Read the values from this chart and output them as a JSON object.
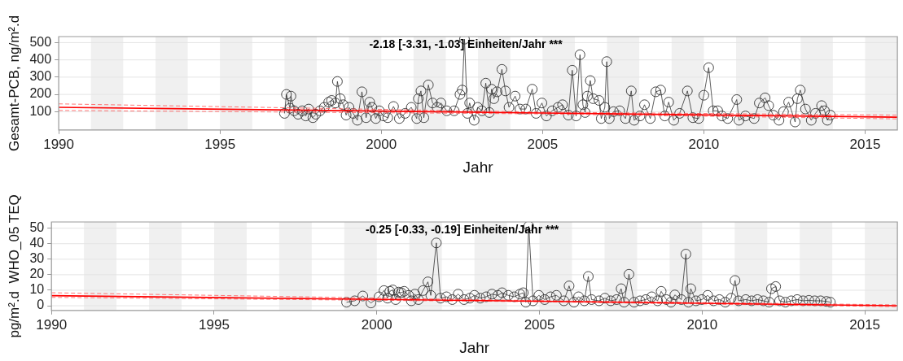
{
  "chart_data": [
    {
      "type": "line",
      "xlabel": "Jahr",
      "ylabel": "Gesamt-PCB, ng/m².d",
      "annotations": [
        "-2.18 [-3.31, -1.03] Einheiten/Jahr ***"
      ],
      "xlim": [
        1990,
        2016
      ],
      "xticks": [
        1990,
        1995,
        2000,
        2005,
        2010,
        2015
      ],
      "ylim": [
        -6,
        535
      ],
      "yticks": [
        100,
        200,
        300,
        400,
        500
      ],
      "grid": "y",
      "legend": false,
      "bands": [
        {
          "axis": "x",
          "from": 1991,
          "to": 1992,
          "color": "#f0f0f0"
        },
        {
          "axis": "x",
          "from": 1993,
          "to": 1994,
          "color": "#f0f0f0"
        },
        {
          "axis": "x",
          "from": 1995,
          "to": 1996,
          "color": "#f0f0f0"
        },
        {
          "axis": "x",
          "from": 1997,
          "to": 1998,
          "color": "#f0f0f0"
        },
        {
          "axis": "x",
          "from": 1999,
          "to": 2000,
          "color": "#f0f0f0"
        },
        {
          "axis": "x",
          "from": 2001,
          "to": 2002,
          "color": "#f0f0f0"
        },
        {
          "axis": "x",
          "from": 2003,
          "to": 2004,
          "color": "#f0f0f0"
        },
        {
          "axis": "x",
          "from": 2005,
          "to": 2006,
          "color": "#f0f0f0"
        },
        {
          "axis": "x",
          "from": 2007,
          "to": 2008,
          "color": "#f0f0f0"
        },
        {
          "axis": "x",
          "from": 2009,
          "to": 2010,
          "color": "#f0f0f0"
        },
        {
          "axis": "x",
          "from": 2011,
          "to": 2012,
          "color": "#f0f0f0"
        },
        {
          "axis": "x",
          "from": 2013,
          "to": 2014,
          "color": "#f0f0f0"
        },
        {
          "axis": "x",
          "from": 2015,
          "to": 2016,
          "color": "#f0f0f0"
        }
      ],
      "series": [
        {
          "color": "#333333",
          "marker": "circle",
          "x": [
            1997.0,
            1997.06,
            1997.17,
            1997.2,
            1997.3,
            1997.42,
            1997.55,
            1997.66,
            1997.75,
            1997.88,
            1997.97,
            1998.1,
            1998.23,
            1998.37,
            1998.46,
            1998.58,
            1998.64,
            1998.73,
            1998.82,
            1998.91,
            1999.0,
            1999.13,
            1999.26,
            1999.4,
            1999.53,
            1999.64,
            1999.71,
            1999.83,
            1999.94,
            2000.07,
            2000.2,
            2000.38,
            2000.56,
            2000.74,
            2000.93,
            2001.1,
            2001.15,
            2001.23,
            2001.32,
            2001.46,
            2001.59,
            2001.73,
            2001.85,
            2002.03,
            2002.26,
            2002.44,
            2002.51,
            2002.58,
            2002.67,
            2002.74,
            2002.88,
            2002.99,
            2003.12,
            2003.24,
            2003.35,
            2003.42,
            2003.49,
            2003.59,
            2003.74,
            2003.85,
            2003.96,
            2004.15,
            2004.3,
            2004.48,
            2004.68,
            2004.8,
            2004.98,
            2005.12,
            2005.3,
            2005.48,
            2005.62,
            2005.8,
            2005.92,
            2006.04,
            2006.16,
            2006.25,
            2006.32,
            2006.39,
            2006.48,
            2006.57,
            2006.75,
            2006.82,
            2006.93,
            2006.99,
            2007.07,
            2007.2,
            2007.39,
            2007.57,
            2007.75,
            2007.84,
            2008.02,
            2008.16,
            2008.34,
            2008.51,
            2008.66,
            2008.79,
            2008.91,
            2009.07,
            2009.25,
            2009.49,
            2009.66,
            2009.84,
            2010.0,
            2010.15,
            2010.29,
            2010.43,
            2010.56,
            2010.74,
            2011.02,
            2011.09,
            2011.29,
            2011.56,
            2011.72,
            2011.9,
            2012.01,
            2012.15,
            2012.33,
            2012.47,
            2012.63,
            2012.83,
            2012.9,
            2012.99,
            2013.15,
            2013.33,
            2013.46,
            2013.65,
            2013.74,
            2013.83,
            2013.92
          ],
          "values": [
            90,
            200,
            120,
            190,
            105,
            85,
            105,
            75,
            115,
            65,
            85,
            105,
            125,
            155,
            165,
            150,
            275,
            175,
            140,
            80,
            125,
            90,
            50,
            215,
            65,
            155,
            125,
            60,
            105,
            75,
            65,
            130,
            60,
            90,
            125,
            60,
            175,
            220,
            65,
            255,
            150,
            125,
            150,
            105,
            105,
            200,
            225,
            520,
            90,
            150,
            50,
            125,
            105,
            265,
            95,
            230,
            175,
            215,
            345,
            220,
            125,
            190,
            115,
            115,
            230,
            90,
            150,
            75,
            105,
            125,
            140,
            80,
            340,
            75,
            430,
            140,
            95,
            190,
            280,
            175,
            165,
            60,
            125,
            390,
            60,
            100,
            105,
            60,
            220,
            50,
            75,
            140,
            60,
            215,
            225,
            75,
            155,
            50,
            90,
            220,
            65,
            60,
            195,
            355,
            105,
            105,
            75,
            60,
            170,
            50,
            75,
            60,
            150,
            180,
            135,
            80,
            50,
            100,
            155,
            40,
            175,
            225,
            115,
            50,
            90,
            135,
            105,
            50,
            80
          ]
        },
        {
          "color": "#ff0000",
          "marker": "none",
          "x": [
            1990,
            2005,
            2016
          ],
          "values": [
            125,
            92,
            68
          ]
        },
        {
          "color": "#ff6666",
          "marker": "none",
          "line_style": "dashed",
          "x": [
            1990,
            2005,
            2016
          ],
          "values": [
            107,
            87,
            58
          ]
        },
        {
          "color": "#ff6666",
          "marker": "none",
          "line_style": "dashed",
          "x": [
            1990,
            2005,
            2016
          ],
          "values": [
            145,
            97,
            80
          ]
        }
      ]
    },
    {
      "type": "line",
      "xlabel": "Jahr",
      "ylabel": "pg/m².d  WHO_05 TEQ",
      "annotations": [
        "-0.25 [-0.33, -0.19] Einheiten/Jahr ***"
      ],
      "xlim": [
        1990,
        2016
      ],
      "xticks": [
        1990,
        1995,
        2000,
        2005,
        2010,
        2015
      ],
      "ylim": [
        -3,
        54
      ],
      "yticks": [
        0,
        10,
        20,
        30,
        40,
        50
      ],
      "grid": "y",
      "legend": false,
      "bands": [
        {
          "axis": "x",
          "from": 1991,
          "to": 1992,
          "color": "#f0f0f0"
        },
        {
          "axis": "x",
          "from": 1993,
          "to": 1994,
          "color": "#f0f0f0"
        },
        {
          "axis": "x",
          "from": 1995,
          "to": 1996,
          "color": "#f0f0f0"
        },
        {
          "axis": "x",
          "from": 1997,
          "to": 1998,
          "color": "#f0f0f0"
        },
        {
          "axis": "x",
          "from": 1999,
          "to": 2000,
          "color": "#f0f0f0"
        },
        {
          "axis": "x",
          "from": 2001,
          "to": 2002,
          "color": "#f0f0f0"
        },
        {
          "axis": "x",
          "from": 2003,
          "to": 2004,
          "color": "#f0f0f0"
        },
        {
          "axis": "x",
          "from": 2005,
          "to": 2006,
          "color": "#f0f0f0"
        },
        {
          "axis": "x",
          "from": 2007,
          "to": 2008,
          "color": "#f0f0f0"
        },
        {
          "axis": "x",
          "from": 2009,
          "to": 2010,
          "color": "#f0f0f0"
        },
        {
          "axis": "x",
          "from": 2011,
          "to": 2012,
          "color": "#f0f0f0"
        },
        {
          "axis": "x",
          "from": 2013,
          "to": 2014,
          "color": "#f0f0f0"
        },
        {
          "axis": "x",
          "from": 2015,
          "to": 2016,
          "color": "#f0f0f0"
        }
      ],
      "series": [
        {
          "color": "#333333",
          "marker": "circle",
          "x": [
            1999.07,
            1999.32,
            1999.57,
            1999.82,
            2000.07,
            2000.22,
            2000.33,
            2000.4,
            2000.49,
            2000.58,
            2000.67,
            2000.75,
            2000.84,
            2000.98,
            2001.06,
            2001.17,
            2001.28,
            2001.42,
            2001.57,
            2001.66,
            2001.83,
            2001.96,
            2002.14,
            2002.32,
            2002.5,
            2002.68,
            2002.86,
            2003.0,
            2003.18,
            2003.36,
            2003.54,
            2003.72,
            2003.85,
            2004.04,
            2004.22,
            2004.4,
            2004.5,
            2004.58,
            2004.67,
            2004.8,
            2004.98,
            2005.16,
            2005.34,
            2005.52,
            2005.75,
            2005.91,
            2006.06,
            2006.2,
            2006.38,
            2006.5,
            2006.6,
            2006.83,
            2007.01,
            2007.19,
            2007.37,
            2007.51,
            2007.6,
            2007.75,
            2007.91,
            2008.09,
            2008.27,
            2008.45,
            2008.63,
            2008.74,
            2008.9,
            2009.04,
            2009.16,
            2009.36,
            2009.5,
            2009.58,
            2009.65,
            2009.81,
            2009.99,
            2010.17,
            2010.35,
            2010.53,
            2010.71,
            2010.89,
            2011.01,
            2011.12,
            2011.34,
            2011.52,
            2011.7,
            2011.88,
            2012.06,
            2012.13,
            2012.26,
            2012.38,
            2012.56,
            2012.74,
            2012.92,
            2013.1,
            2013.28,
            2013.46,
            2013.64,
            2013.82,
            2013.94
          ],
          "values": [
            2.3,
            3.2,
            6.3,
            1.8,
            5.8,
            9.8,
            4.9,
            9.3,
            10.2,
            4.0,
            8.8,
            8.4,
            9.3,
            6.7,
            3.2,
            7.5,
            4.0,
            9.8,
            15.4,
            6.7,
            40.5,
            4.9,
            5.8,
            4.0,
            7.5,
            4.0,
            4.9,
            6.7,
            4.9,
            5.8,
            7.5,
            6.7,
            8.4,
            6.7,
            5.8,
            7.5,
            8.4,
            2.3,
            51.3,
            3.2,
            6.7,
            4.0,
            5.8,
            6.7,
            3.2,
            12.8,
            2.3,
            5.8,
            3.2,
            18.9,
            4.0,
            3.2,
            4.9,
            3.2,
            4.0,
            11.0,
            2.3,
            20.3,
            2.3,
            3.2,
            4.0,
            5.8,
            3.2,
            9.3,
            4.0,
            2.3,
            7.0,
            4.0,
            33.3,
            2.3,
            11.0,
            3.2,
            4.0,
            6.7,
            3.2,
            4.0,
            2.3,
            4.9,
            16.3,
            3.2,
            4.0,
            3.2,
            4.0,
            3.2,
            2.3,
            11.0,
            12.4,
            3.2,
            2.3,
            3.2,
            4.0,
            3.2,
            3.5,
            3.2,
            3.2,
            2.8,
            2.3
          ]
        },
        {
          "color": "#ff0000",
          "marker": "none",
          "x": [
            1990,
            2005,
            2016
          ],
          "values": [
            6.5,
            2.9,
            0.0
          ]
        },
        {
          "color": "#ff6666",
          "marker": "none",
          "line_style": "dashed",
          "x": [
            1990,
            2005,
            2016
          ],
          "values": [
            5.4,
            2.6,
            -0.6
          ]
        },
        {
          "color": "#ff6666",
          "marker": "none",
          "line_style": "dashed",
          "x": [
            1990,
            2005,
            2016
          ],
          "values": [
            8.4,
            3.3,
            0.6
          ]
        }
      ]
    }
  ]
}
